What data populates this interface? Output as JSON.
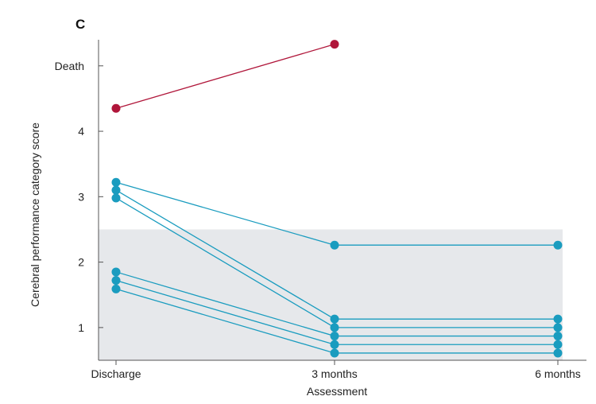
{
  "chart_data": {
    "type": "line",
    "panel_label": "C",
    "xlabel": "Assessment",
    "ylabel": "Cerebral performance category score",
    "categories": [
      "Discharge",
      "3 months",
      "6 months"
    ],
    "y_ticks": [
      {
        "value": 1,
        "label": "1"
      },
      {
        "value": 2,
        "label": "2"
      },
      {
        "value": 3,
        "label": "3"
      },
      {
        "value": 4,
        "label": "4"
      },
      {
        "value": 5,
        "label": "Death"
      }
    ],
    "ylim": [
      0.5,
      5.35
    ],
    "shaded_band": {
      "from": 0.5,
      "to": 2.5,
      "color": "#e6e8eb"
    },
    "grid": false,
    "colors": {
      "survivor": "#1a9cbf",
      "death": "#b0163a"
    },
    "series": [
      {
        "group": "death",
        "values": [
          4.35,
          5.33,
          null
        ]
      },
      {
        "group": "survivor",
        "values": [
          3.22,
          2.26,
          2.26
        ]
      },
      {
        "group": "survivor",
        "values": [
          3.1,
          1.13,
          1.13
        ]
      },
      {
        "group": "survivor",
        "values": [
          2.98,
          1.0,
          1.0
        ]
      },
      {
        "group": "survivor",
        "values": [
          1.85,
          0.87,
          0.87
        ]
      },
      {
        "group": "survivor",
        "values": [
          1.72,
          0.74,
          0.74
        ]
      },
      {
        "group": "survivor",
        "values": [
          1.59,
          0.61,
          0.61
        ]
      }
    ]
  }
}
